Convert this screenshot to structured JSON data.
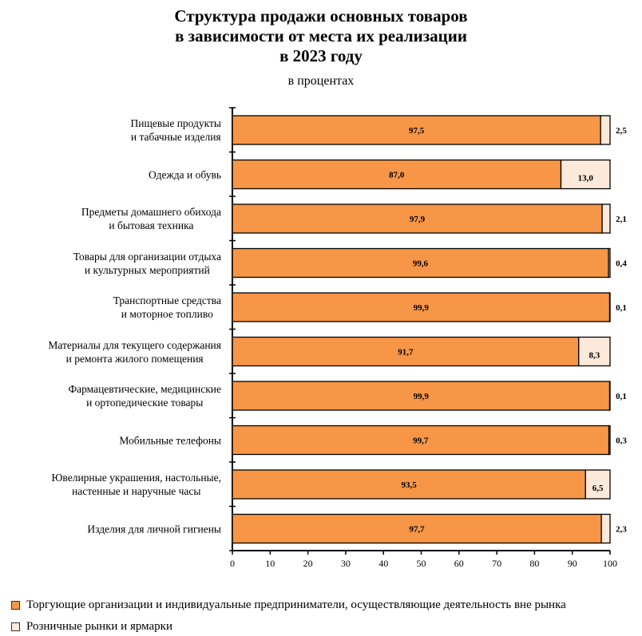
{
  "chart_data": {
    "type": "bar",
    "orientation": "horizontal",
    "stacked": true,
    "title": [
      "Структура продажи основных товаров",
      "в зависимости от места их реализации",
      "в 2023 году"
    ],
    "subtitle": "в процентах",
    "categories": [
      [
        "Пищевые продукты",
        "и табачные изделия"
      ],
      [
        "Одежда и обувь"
      ],
      [
        "Предметы домашнего обихода",
        "и бытовая техника"
      ],
      [
        "Товары для организации  отдыха",
        "и культурных мероприятий"
      ],
      [
        "Транспортные  средства",
        "и моторное топливо"
      ],
      [
        "Материалы для текущего содержания",
        "и ремонта жилого помещения"
      ],
      [
        "Фармацевтические,  медицинские",
        "и ортопедические  товары"
      ],
      [
        "Мобильные телефоны"
      ],
      [
        "Ювелирные украшения, настольные,",
        "настенные  и наручные часы"
      ],
      [
        "Изделия для личной гигиены"
      ]
    ],
    "series": [
      {
        "name": "Торгующие организации и индивидуальные предприниматели, осуществляющие деятельность вне рынка",
        "color": "#f79646",
        "values": [
          97.5,
          87.0,
          97.9,
          99.6,
          99.9,
          91.7,
          99.9,
          99.7,
          93.5,
          97.7
        ],
        "labels": [
          "97,5",
          "87,0",
          "97,9",
          "99,6",
          "99,9",
          "91,7",
          "99,9",
          "99,7",
          "93,5",
          "97,7"
        ]
      },
      {
        "name": "Розничные рынки и ярмарки",
        "color": "#fde9d9",
        "values": [
          2.5,
          13.0,
          2.1,
          0.4,
          0.1,
          8.3,
          0.1,
          0.3,
          6.5,
          2.3
        ],
        "labels": [
          "2,5",
          "13,0",
          "2,1",
          "0,4",
          "0,1",
          "8,3",
          "0,1",
          "0,3",
          "6,5",
          "2,3"
        ]
      }
    ],
    "xlim": [
      0,
      100
    ],
    "xticks": [
      "0",
      "10",
      "20",
      "30",
      "40",
      "50",
      "60",
      "70",
      "80",
      "90",
      "100"
    ],
    "grid": false,
    "legend": "bottom-left"
  }
}
